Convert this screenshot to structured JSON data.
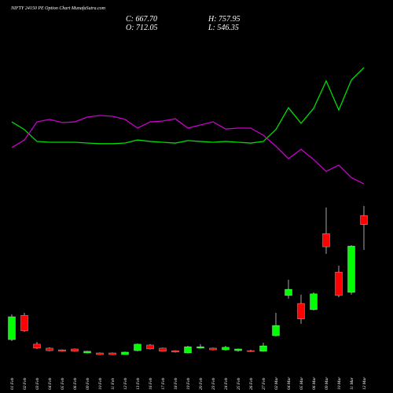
{
  "chart_data": {
    "type": "candlestick",
    "title": "NIFTY 24150  PE Option  Chart MunafaSutra.com",
    "header": {
      "close": "C: 667.70",
      "high": "H: 757.95",
      "open": "O: 712.05",
      "low": "L: 546.35"
    },
    "categories": [
      "01 Feb",
      "02 Feb",
      "03 Feb",
      "04 Feb",
      "05 Feb",
      "06 Feb",
      "09 Feb",
      "10 Feb",
      "11 Feb",
      "12 Feb",
      "13 Feb",
      "16 Feb",
      "17 Feb",
      "18 Feb",
      "19 Feb",
      "20 Feb",
      "23 Feb",
      "24 Feb",
      "25 Feb",
      "26 Feb",
      "27 Feb",
      "02 Mar",
      "04 Mar",
      "05 Mar",
      "06 Mar",
      "09 Mar",
      "10 Mar",
      "11 Mar",
      "12 Mar"
    ],
    "open": [
      115,
      232,
      93,
      74,
      66,
      70,
      51,
      51,
      51,
      43,
      62,
      89,
      74,
      62,
      51,
      74,
      74,
      66,
      62,
      62,
      59,
      134,
      327,
      289,
      259,
      625,
      440,
      342,
      712.05
    ],
    "high": [
      236,
      244,
      104,
      78,
      68,
      72,
      61,
      53,
      53,
      57,
      96,
      93,
      76,
      64,
      85,
      93,
      76,
      85,
      72,
      66,
      100,
      244,
      403,
      331,
      342,
      750,
      471,
      569,
      757.95
    ],
    "low": [
      108,
      153,
      70,
      59,
      57,
      57,
      49,
      42,
      42,
      42,
      59,
      68,
      57,
      53,
      49,
      72,
      64,
      62,
      57,
      57,
      57,
      130,
      312,
      191,
      255,
      527,
      319,
      331,
      546.35
    ],
    "close": [
      225,
      157,
      74,
      62,
      59,
      59,
      59,
      43,
      43,
      55,
      93,
      70,
      59,
      55,
      81,
      81,
      66,
      78,
      70,
      59,
      85,
      183,
      357,
      214,
      335,
      561,
      327,
      565,
      667.7
    ],
    "up_color": "#00ff00",
    "down_color": "#ff0000",
    "lines": [
      {
        "color": "#00dd00",
        "values": [
          1162,
          1125,
          1068,
          1064,
          1064,
          1064,
          1060,
          1057,
          1057,
          1060,
          1075,
          1068,
          1064,
          1060,
          1072,
          1068,
          1064,
          1068,
          1064,
          1060,
          1068,
          1125,
          1230,
          1155,
          1227,
          1359,
          1219,
          1363,
          1423
        ]
      },
      {
        "color": "#cc00cc",
        "values": [
          1038,
          1075,
          1162,
          1174,
          1159,
          1162,
          1185,
          1193,
          1189,
          1174,
          1132,
          1162,
          1166,
          1177,
          1132,
          1147,
          1162,
          1128,
          1132,
          1132,
          1098,
          1045,
          985,
          1030,
          981,
          924,
          954,
          894,
          864
        ]
      }
    ],
    "ylim": [
      0,
      1748
    ]
  }
}
